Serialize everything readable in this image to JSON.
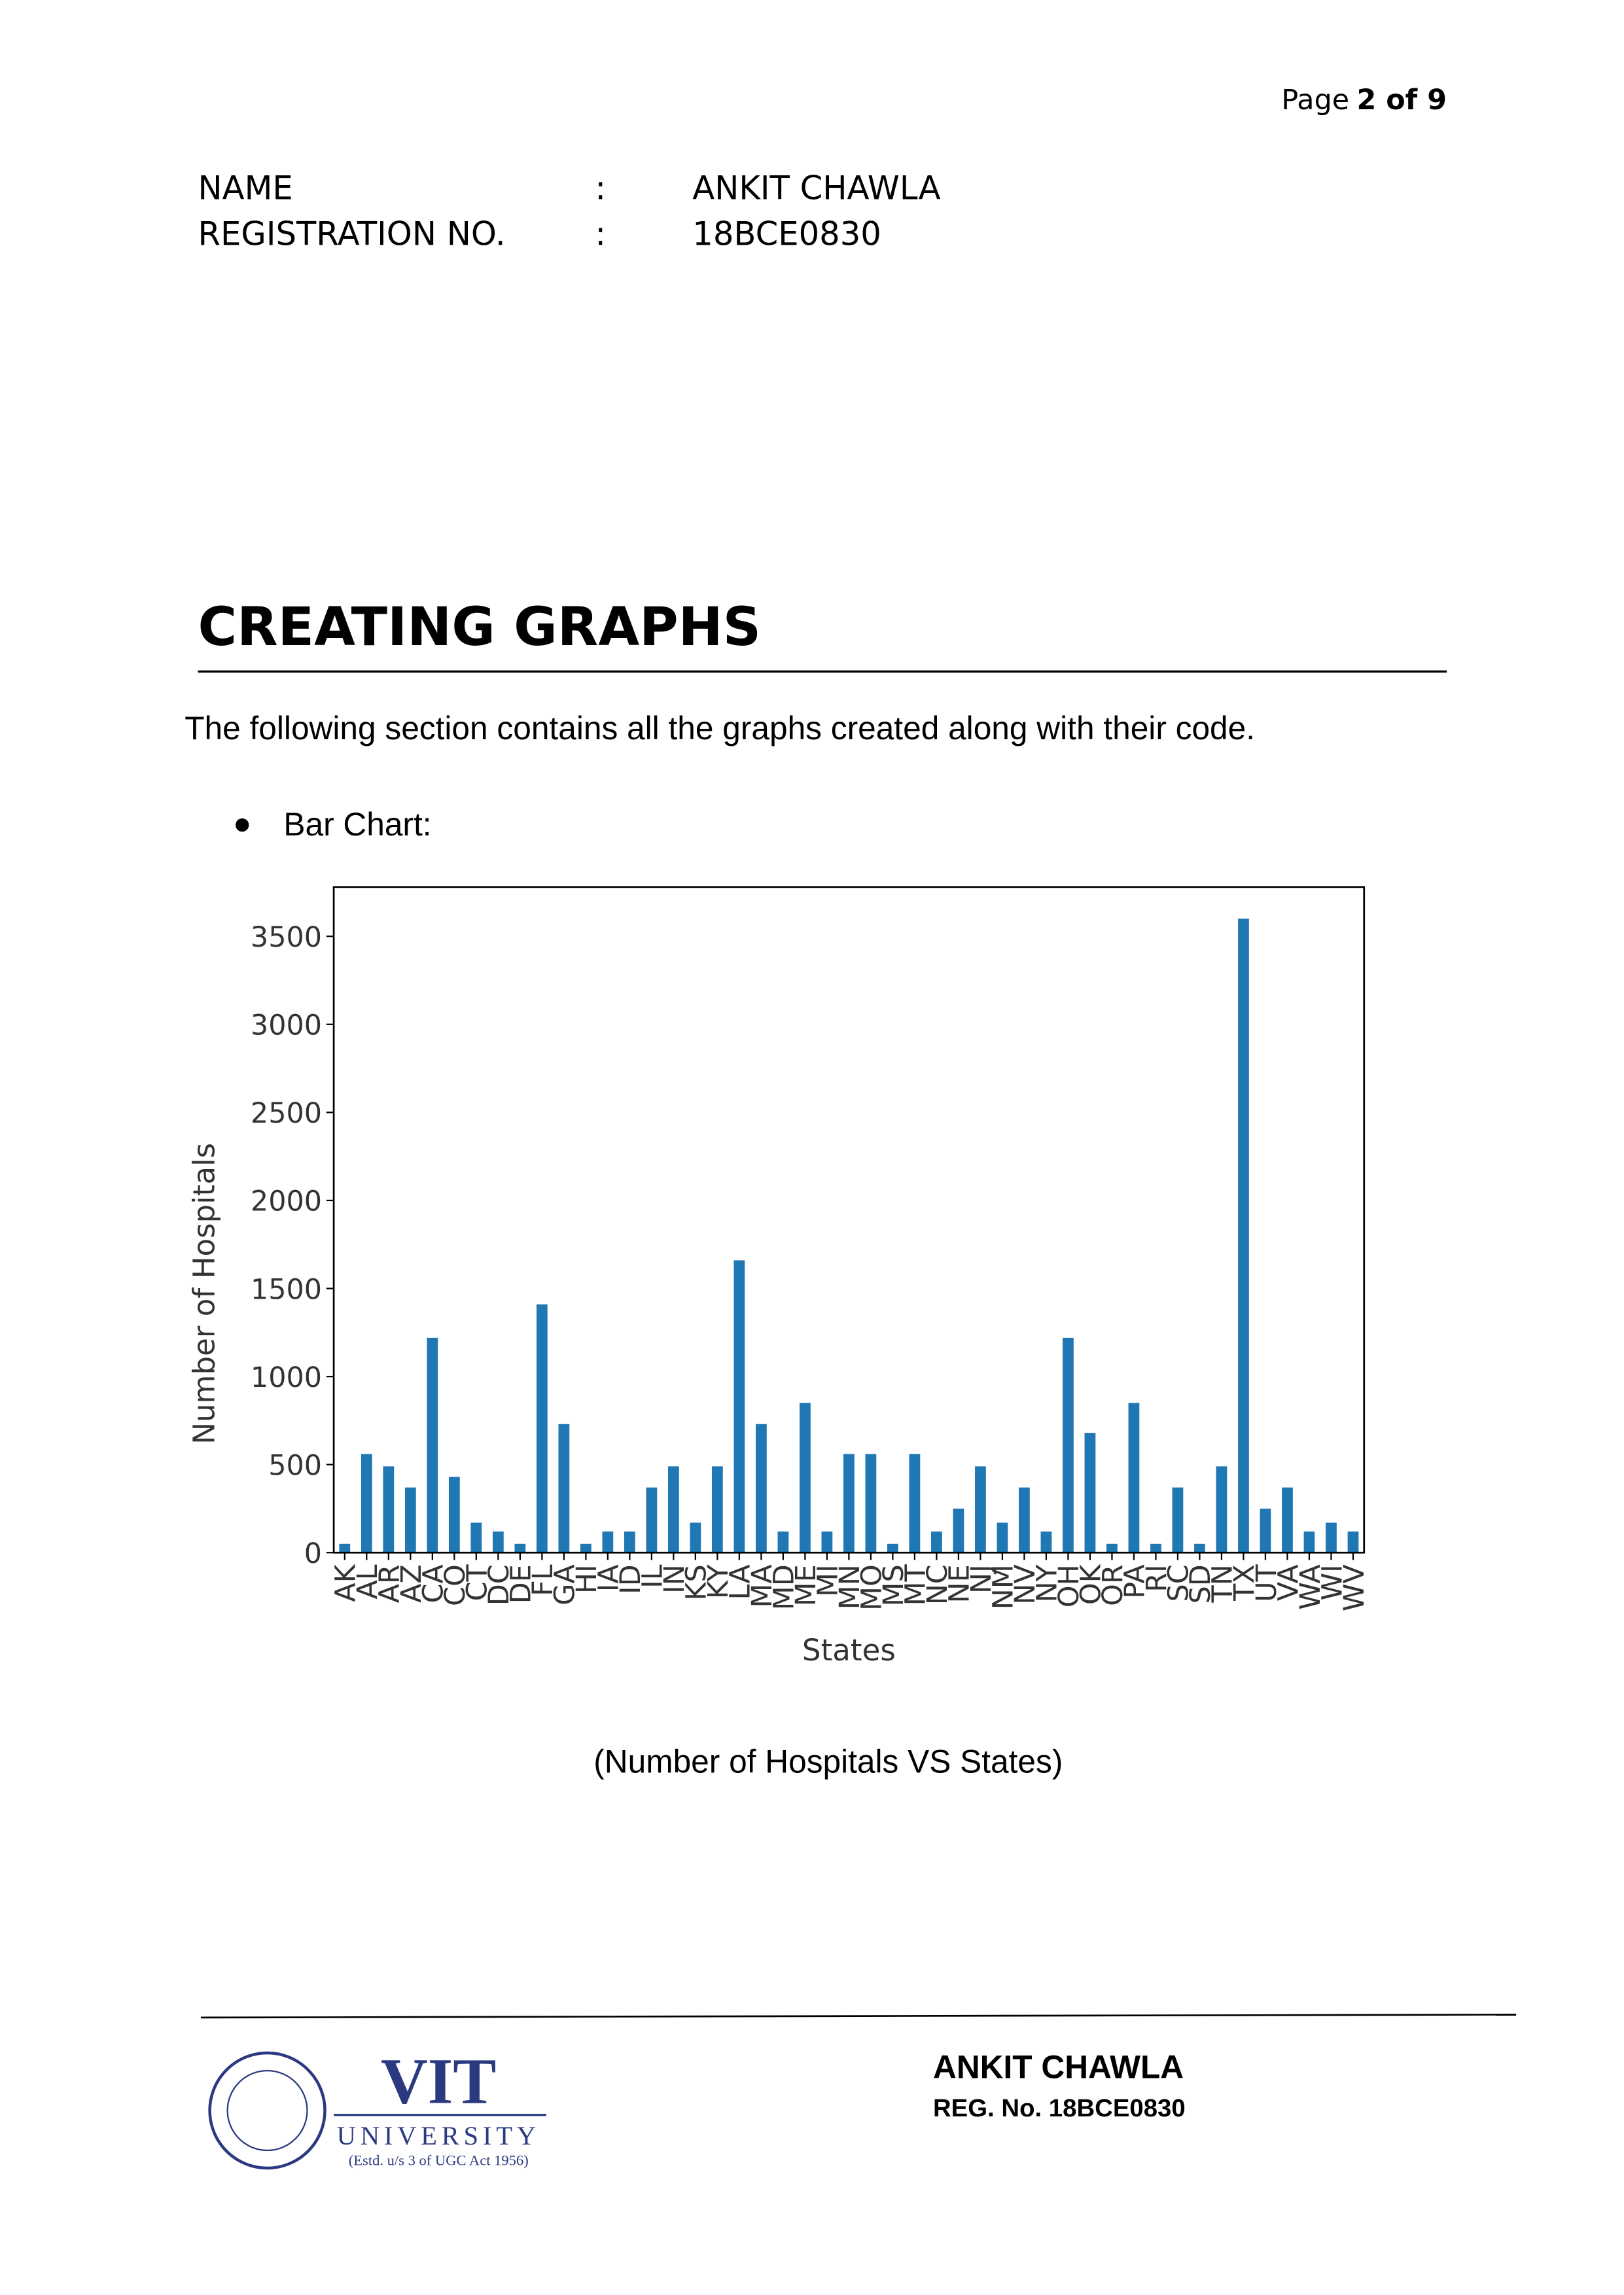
{
  "page": {
    "prefix": "Page",
    "number": "2 of 9"
  },
  "header": {
    "fields": [
      {
        "label": "NAME",
        "sep": ":",
        "value": "ANKIT CHAWLA"
      },
      {
        "label": "REGISTRATION NO.",
        "sep": ":",
        "value": "18BCE0830"
      }
    ]
  },
  "section": {
    "title": "CREATING GRAPHS",
    "intro": "The following section contains all the graphs created along with their code.",
    "bullet": "Bar Chart:",
    "caption": "(Number of Hospitals VS States)"
  },
  "chart_data": {
    "type": "bar",
    "xlabel": "States",
    "ylabel": "Number of Hospitals",
    "color": "#1f77b4",
    "categories": [
      "AK",
      "AL",
      "AR",
      "AZ",
      "CA",
      "CO",
      "CT",
      "DC",
      "DE",
      "FL",
      "GA",
      "HI",
      "IA",
      "ID",
      "IL",
      "IN",
      "KS",
      "KY",
      "LA",
      "MA",
      "MD",
      "ME",
      "MI",
      "MN",
      "MO",
      "MS",
      "MT",
      "NC",
      "NE",
      "NJ",
      "NM",
      "NV",
      "NY",
      "OH",
      "OK",
      "OR",
      "PA",
      "RI",
      "SC",
      "SD",
      "TN",
      "TX",
      "UT",
      "VA",
      "WA",
      "WI",
      "WV"
    ],
    "values": [
      50,
      560,
      490,
      370,
      1220,
      430,
      170,
      120,
      50,
      1410,
      730,
      50,
      120,
      120,
      370,
      490,
      170,
      490,
      1660,
      730,
      120,
      850,
      120,
      560,
      560,
      50,
      560,
      120,
      250,
      490,
      170,
      370,
      120,
      1220,
      680,
      50,
      850,
      50,
      370,
      50,
      490,
      3600,
      250,
      370,
      120,
      170,
      120
    ],
    "ylim": [
      0,
      3780
    ],
    "yticks": [
      0,
      500,
      1000,
      1500,
      2000,
      2500,
      3000,
      3500
    ]
  },
  "footer": {
    "name": "ANKIT CHAWLA",
    "reg": "REG. No. 18BCE0830",
    "logo": {
      "title": "VIT",
      "subtitle": "UNIVERSITY",
      "note": "(Estd. u/s 3 of UGC Act 1956)"
    }
  }
}
